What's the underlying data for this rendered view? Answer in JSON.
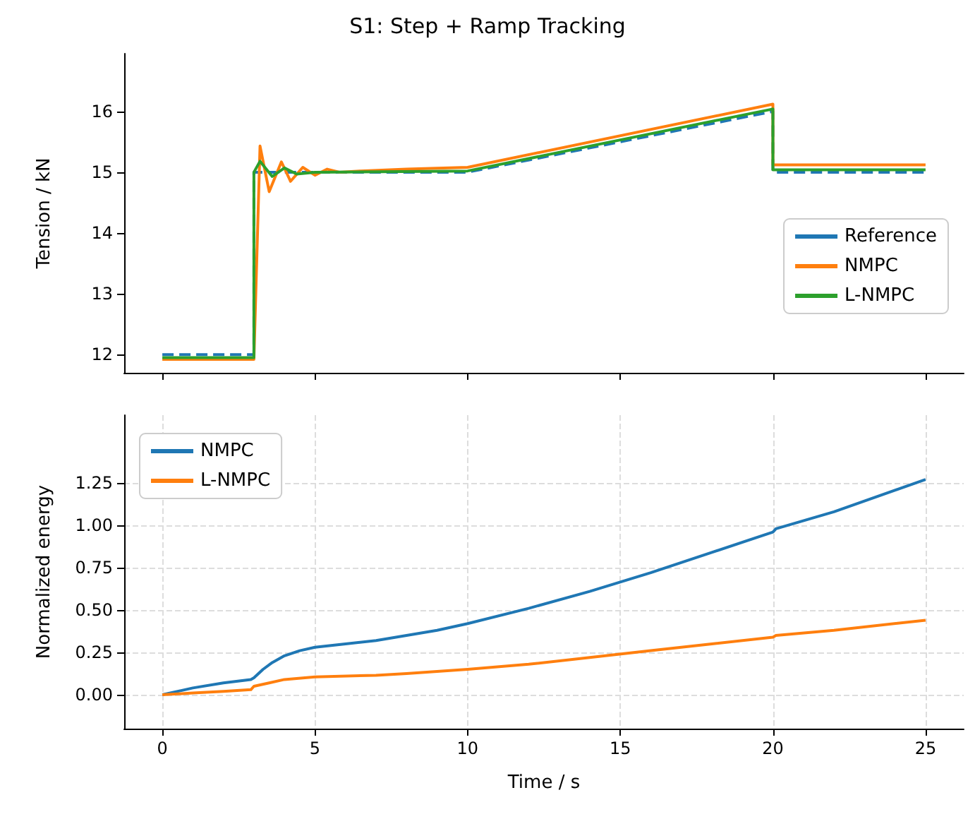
{
  "chart_data": [
    {
      "type": "line",
      "title": "S1: Step + Ramp Tracking",
      "ylabel": "Tension / kN",
      "xlim": [
        -1.25,
        26.25
      ],
      "xticks": [
        0,
        5,
        10,
        15,
        20,
        25
      ],
      "ylim": [
        11.7,
        16.95
      ],
      "yticks": [
        12,
        13,
        14,
        15,
        16
      ],
      "tick_labels": "y",
      "grid": false,
      "legend": "bottom right",
      "marker": "none",
      "series": [
        {
          "name": "Reference",
          "color": "#1f77b4",
          "line_style": "dashed",
          "x": [
            0,
            3,
            3,
            10,
            20,
            20,
            25
          ],
          "values": [
            12.0,
            12.0,
            15.0,
            15.0,
            16.0,
            15.0,
            15.0
          ]
        },
        {
          "name": "NMPC",
          "color": "#ff7f0e",
          "x": [
            0,
            3,
            3.2,
            3.5,
            3.9,
            4.2,
            4.6,
            5.0,
            5.4,
            5.8,
            6.5,
            8,
            10,
            20,
            20,
            25
          ],
          "values": [
            11.92,
            11.92,
            15.43,
            14.68,
            15.17,
            14.85,
            15.08,
            14.95,
            15.05,
            15.0,
            15.02,
            15.05,
            15.08,
            16.12,
            15.12,
            15.12
          ]
        },
        {
          "name": "L-NMPC",
          "color": "#2ca02c",
          "x": [
            0,
            3,
            3,
            3.2,
            3.6,
            4.0,
            4.4,
            5.0,
            10,
            20,
            20,
            25
          ],
          "values": [
            11.95,
            11.95,
            15.0,
            15.18,
            14.93,
            15.07,
            14.97,
            15.0,
            15.02,
            16.04,
            15.04,
            15.04
          ]
        }
      ]
    },
    {
      "type": "line",
      "xlabel": "Time / s",
      "ylabel": "Normalized energy",
      "xlim": [
        -1.25,
        26.25
      ],
      "xticks": [
        0,
        5,
        10,
        15,
        20,
        25
      ],
      "ylim": [
        -0.2,
        1.65
      ],
      "yticks": [
        {
          "value": 0,
          "label": "0.00"
        },
        0.25,
        {
          "value": 0.5,
          "label": "0.50"
        },
        0.75,
        {
          "value": 1,
          "label": "1.00"
        },
        1.25
      ],
      "grid": true,
      "legend": "top left",
      "marker": "none",
      "series": [
        {
          "name": "NMPC",
          "color": "#1f77b4",
          "x": [
            0,
            1,
            2,
            2.9,
            3,
            3.3,
            3.6,
            4,
            4.5,
            5,
            6,
            7,
            8,
            9,
            10,
            12,
            14,
            16,
            18,
            20,
            20.1,
            22,
            25
          ],
          "values": [
            0,
            0.04,
            0.07,
            0.09,
            0.1,
            0.15,
            0.19,
            0.23,
            0.26,
            0.28,
            0.3,
            0.32,
            0.35,
            0.38,
            0.42,
            0.51,
            0.61,
            0.72,
            0.84,
            0.96,
            0.98,
            1.08,
            1.27
          ]
        },
        {
          "name": "L-NMPC",
          "color": "#ff7f0e",
          "x": [
            0,
            1,
            2,
            2.9,
            3,
            3.5,
            4,
            5,
            7,
            8,
            10,
            12,
            14,
            16,
            18,
            20,
            20.1,
            22,
            25
          ],
          "values": [
            0,
            0.01,
            0.02,
            0.03,
            0.05,
            0.07,
            0.09,
            0.105,
            0.115,
            0.125,
            0.15,
            0.18,
            0.22,
            0.26,
            0.3,
            0.34,
            0.35,
            0.38,
            0.44
          ]
        }
      ]
    }
  ]
}
